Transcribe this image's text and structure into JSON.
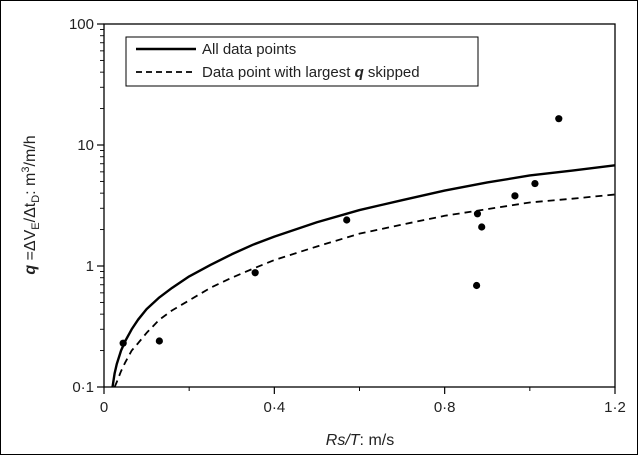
{
  "chart_data": {
    "type": "scatter",
    "title": "",
    "xlabel": {
      "main": "Rs/T",
      "rest": ": m/s"
    },
    "ylabel": {
      "q": "q",
      "eq": " =ΔV",
      "sub_e": "E",
      "mid": "/Δt",
      "sub_d": "D",
      "units": ": m",
      "sup3": "3",
      "tail": "/m/h"
    },
    "xlim": [
      0,
      1.2
    ],
    "ylim": [
      0.1,
      100
    ],
    "y_scale": "log",
    "x_ticks": [
      {
        "value": 0,
        "label": "0"
      },
      {
        "value": 0.4,
        "label": "0·4"
      },
      {
        "value": 0.8,
        "label": "0·8"
      },
      {
        "value": 1.2,
        "label": "1·2"
      }
    ],
    "y_ticks": [
      {
        "value": 0.1,
        "label": "0·1"
      },
      {
        "value": 1,
        "label": "1"
      },
      {
        "value": 10,
        "label": "10"
      },
      {
        "value": 100,
        "label": "100"
      }
    ],
    "legend": {
      "placement": "top-left",
      "entries": [
        {
          "label": "All data points",
          "style": "solid"
        },
        {
          "label_pre": "Data point with largest ",
          "label_q": "q",
          "label_post": " skipped",
          "style": "dashed"
        }
      ]
    },
    "points": [
      {
        "x": 0.045,
        "y": 0.23
      },
      {
        "x": 0.13,
        "y": 0.24
      },
      {
        "x": 0.355,
        "y": 0.88
      },
      {
        "x": 0.57,
        "y": 2.4
      },
      {
        "x": 0.875,
        "y": 0.69
      },
      {
        "x": 0.877,
        "y": 2.7
      },
      {
        "x": 0.887,
        "y": 2.1
      },
      {
        "x": 0.965,
        "y": 3.8
      },
      {
        "x": 1.012,
        "y": 4.8
      },
      {
        "x": 1.068,
        "y": 16.5
      }
    ],
    "series": [
      {
        "style": "solid",
        "x": [
          0.02,
          0.025,
          0.03,
          0.04,
          0.05,
          0.065,
          0.08,
          0.1,
          0.13,
          0.16,
          0.2,
          0.25,
          0.3,
          0.35,
          0.4,
          0.5,
          0.6,
          0.7,
          0.8,
          0.9,
          1.0,
          1.1,
          1.2
        ],
        "y": [
          0.1,
          0.13,
          0.155,
          0.2,
          0.24,
          0.3,
          0.36,
          0.44,
          0.55,
          0.66,
          0.82,
          1.02,
          1.25,
          1.5,
          1.75,
          2.3,
          2.9,
          3.5,
          4.2,
          4.9,
          5.6,
          6.15,
          6.8
        ]
      },
      {
        "style": "dashed",
        "x": [
          0.025,
          0.03,
          0.04,
          0.05,
          0.065,
          0.08,
          0.1,
          0.13,
          0.16,
          0.2,
          0.25,
          0.3,
          0.35,
          0.4,
          0.5,
          0.6,
          0.7,
          0.8,
          0.9,
          1.0,
          1.1,
          1.2
        ],
        "y": [
          0.1,
          0.11,
          0.135,
          0.16,
          0.2,
          0.23,
          0.28,
          0.36,
          0.43,
          0.52,
          0.66,
          0.8,
          0.95,
          1.12,
          1.45,
          1.85,
          2.2,
          2.6,
          2.95,
          3.35,
          3.6,
          3.9
        ]
      }
    ]
  }
}
